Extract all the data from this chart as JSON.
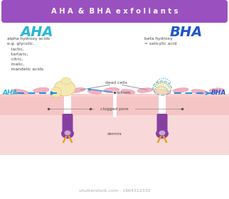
{
  "title": "A H A  &  B H A  e x f o l i a n t s",
  "title_bg": "#9b50bf",
  "title_color": "#ffffff",
  "aha_color": "#29b6d5",
  "bha_color": "#2255cc",
  "text_color": "#444444",
  "bg_color": "#ffffff",
  "aha_label": "AHA",
  "bha_label": "BHA",
  "aha_desc": "alpha hydroxy acids\ne.g. glycolic,\n   lactic,\n   tartaric,\n   citric,\n   malic,\n   mandelic acids",
  "bha_desc": "beta hydroxy\n= salicylic acid",
  "dead_cells_label": "dead cells",
  "sebum_label": "sebum",
  "clogged_pore_label": "clogged pore",
  "dermis_label": "dermis",
  "skin_surface_color": "#f5c5c5",
  "skin_mid_color": "#f2b5b5",
  "dermis_color": "#f8d8d8",
  "dead_cell_color": "#f4b0c0",
  "dead_cell_edge": "#e898aa",
  "sebum_color": "#f5e8b0",
  "sebum_edge": "#ddc880",
  "follicle_color": "#8840a0",
  "follicle_inner": "#ffffff",
  "root_color": "#e8a020",
  "dashed_color": "#1a90e0",
  "arrow_color": "#1a90e0",
  "line_color": "#888888",
  "dot_color": "#555555",
  "wm_color": "#aaaaaa"
}
